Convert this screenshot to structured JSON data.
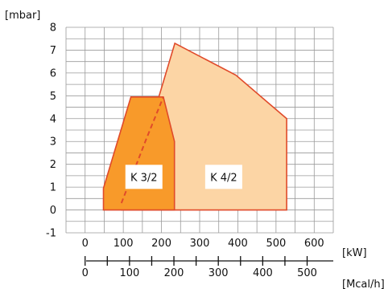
{
  "chart_data": {
    "type": "area",
    "y_unit_label": "[mbar]",
    "ylim": [
      -1,
      8
    ],
    "y_ticks": [
      "8",
      "7",
      "6",
      "5",
      "4",
      "3",
      "2",
      "1",
      "0",
      "-1"
    ],
    "y_tick_values": [
      8,
      7,
      6,
      5,
      4,
      3,
      2,
      1,
      0,
      -1
    ],
    "kw_axis": {
      "unit_label": "[kW]",
      "lim": [
        -50,
        650
      ],
      "ticks": [
        "0",
        "100",
        "200",
        "300",
        "400",
        "500",
        "600"
      ],
      "tick_values": [
        0,
        100,
        200,
        300,
        400,
        500,
        600
      ]
    },
    "mcal_axis": {
      "unit_label": "[Mcal/h]",
      "ticks": [
        "0",
        "100",
        "200",
        "300",
        "400",
        "500"
      ],
      "tick_values": [
        0,
        100,
        200,
        300,
        400,
        500
      ]
    },
    "grid": true,
    "series": [
      {
        "name": "K 4/2",
        "polygon_kw_mbar": [
          [
            235,
            7.3
          ],
          [
            395,
            5.9
          ],
          [
            528,
            4.0
          ],
          [
            528,
            0
          ],
          [
            95,
            0
          ],
          [
            95,
            0.3
          ],
          [
            160,
            3.1
          ],
          [
            235,
            7.3
          ]
        ],
        "fill": "#fcd5a5",
        "stroke": "#e04a2a"
      },
      {
        "name": "K 3/2",
        "polygon_kw_mbar": [
          [
            48,
            0
          ],
          [
            48,
            0.95
          ],
          [
            120,
            4.95
          ],
          [
            205,
            4.95
          ],
          [
            234,
            3.0
          ],
          [
            234,
            0
          ],
          [
            48,
            0
          ]
        ],
        "fill": "#f89a2a",
        "stroke": "#e04a2a"
      }
    ],
    "dashed_boundary_kw_mbar": [
      [
        95,
        0.3
      ],
      [
        160,
        3.1
      ],
      [
        205,
        4.95
      ]
    ],
    "labels": [
      {
        "text": "K 3/2",
        "at": [
          154,
          1.45
        ]
      },
      {
        "text": "K 4/2",
        "at": [
          363,
          1.45
        ]
      }
    ]
  }
}
